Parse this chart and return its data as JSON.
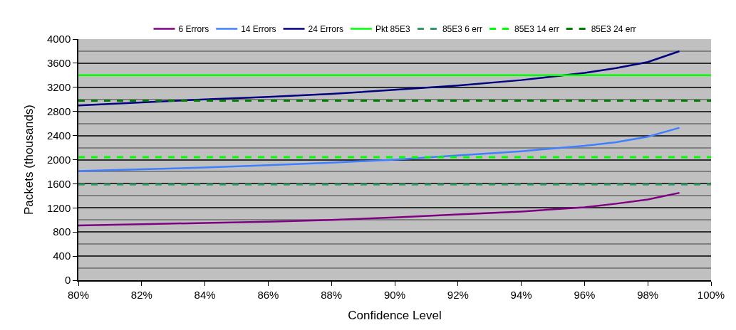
{
  "chart_data": {
    "type": "line",
    "xlabel": "Confidence Level",
    "ylabel": "Packets (thousands)",
    "x": [
      0.8,
      0.82,
      0.84,
      0.86,
      0.88,
      0.9,
      0.92,
      0.94,
      0.96,
      0.97,
      0.98,
      0.99
    ],
    "series": [
      {
        "name": "6 Errors",
        "color": "#800080",
        "values": [
          910,
          930,
          950,
          970,
          1000,
          1040,
          1090,
          1140,
          1210,
          1270,
          1340,
          1450
        ]
      },
      {
        "name": "14 Errors",
        "color": "#3f7fff",
        "values": [
          1810,
          1840,
          1870,
          1910,
          1950,
          2000,
          2070,
          2140,
          2230,
          2290,
          2380,
          2530
        ]
      },
      {
        "name": "24 Errors",
        "color": "#000080",
        "values": [
          2900,
          2950,
          3000,
          3040,
          3090,
          3160,
          3230,
          3320,
          3440,
          3520,
          3620,
          3800
        ]
      }
    ],
    "ref_lines": [
      {
        "axis": "y",
        "value": 3400,
        "label": "Pkt 85E3",
        "color": "#00ff00",
        "line_style": "solid"
      },
      {
        "axis": "y",
        "value": 1590,
        "label": "85E3 6 err",
        "color": "#339966",
        "line_style": "dashed"
      },
      {
        "axis": "y",
        "value": 2040,
        "label": "85E3 14 err",
        "color": "#00ff00",
        "line_style": "dashed"
      },
      {
        "axis": "y",
        "value": 2980,
        "label": "85E3 24 err",
        "color": "#008000",
        "line_style": "dashed"
      }
    ],
    "xlim": [
      0.8,
      1.0
    ],
    "xticks": [
      {
        "value": 0.8,
        "label": "80%"
      },
      {
        "value": 0.82,
        "label": "82%"
      },
      {
        "value": 0.84,
        "label": "84%"
      },
      {
        "value": 0.86,
        "label": "86%"
      },
      {
        "value": 0.88,
        "label": "88%"
      },
      {
        "value": 0.9,
        "label": "90%"
      },
      {
        "value": 0.92,
        "label": "92%"
      },
      {
        "value": 0.94,
        "label": "94%"
      },
      {
        "value": 0.96,
        "label": "96%"
      },
      {
        "value": 0.98,
        "label": "98%"
      },
      {
        "value": 1.0,
        "label": "100%"
      }
    ],
    "ylim": [
      0,
      4000
    ],
    "yticks": [
      0,
      400,
      800,
      1200,
      1600,
      2000,
      2400,
      2800,
      3200,
      3600,
      4000
    ],
    "grid": "y",
    "legend": "top",
    "marker": "none",
    "line_style": "solid"
  }
}
